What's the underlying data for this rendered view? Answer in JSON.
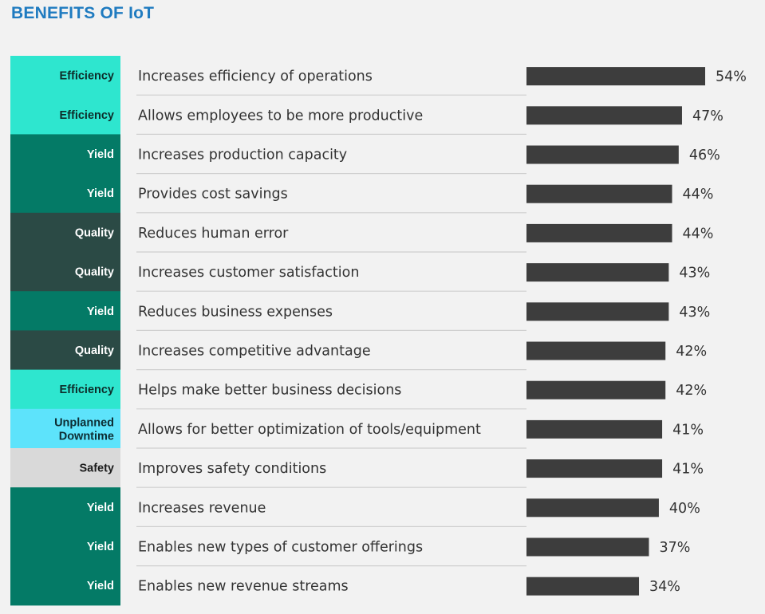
{
  "chart_data": {
    "type": "bar",
    "orientation": "horizontal",
    "title": "BENEFITS OF IoT",
    "value_suffix": "%",
    "xlim": [
      0,
      54
    ],
    "rows": [
      {
        "category": "Efficiency",
        "label": "Increases efficiency of operations",
        "value": 54
      },
      {
        "category": "Efficiency",
        "label": "Allows employees to be more productive",
        "value": 47
      },
      {
        "category": "Yield",
        "label": "Increases production capacity",
        "value": 46
      },
      {
        "category": "Yield",
        "label": "Provides cost savings",
        "value": 44
      },
      {
        "category": "Quality",
        "label": "Reduces human error",
        "value": 44
      },
      {
        "category": "Quality",
        "label": "Increases customer satisfaction",
        "value": 43
      },
      {
        "category": "Yield",
        "label": "Reduces business expenses",
        "value": 43
      },
      {
        "category": "Quality",
        "label": "Increases competitive advantage",
        "value": 42
      },
      {
        "category": "Efficiency",
        "label": "Helps make better business decisions",
        "value": 42
      },
      {
        "category": "Unplanned Downtime",
        "label": "Allows for better optimization of tools/equipment",
        "value": 41
      },
      {
        "category": "Safety",
        "label": "Improves safety conditions",
        "value": 41
      },
      {
        "category": "Yield",
        "label": "Increases revenue",
        "value": 40
      },
      {
        "category": "Yield",
        "label": "Enables new types of customer offerings",
        "value": 37
      },
      {
        "category": "Yield",
        "label": "Enables new revenue streams",
        "value": 34
      }
    ],
    "category_colors": {
      "Efficiency": {
        "bg": "#2ee6cf",
        "fg": "#0d2d2a"
      },
      "Yield": {
        "bg": "#047a66",
        "fg": "#ffffff"
      },
      "Quality": {
        "bg": "#2b4a45",
        "fg": "#ffffff"
      },
      "Unplanned Downtime": {
        "bg": "#5de3fb",
        "fg": "#0d2d33"
      },
      "Safety": {
        "bg": "#d9d9d9",
        "fg": "#1a1a1a"
      }
    },
    "bar_color": "#3d3d3d"
  }
}
